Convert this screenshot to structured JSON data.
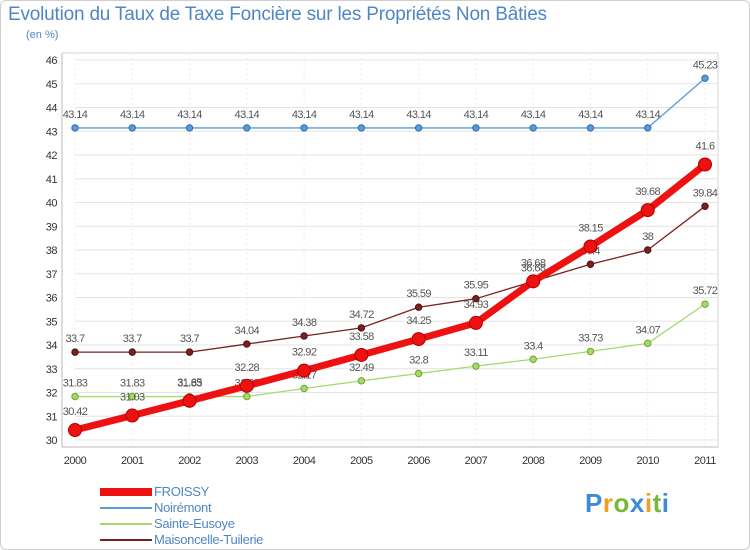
{
  "page": {
    "title": "Evolution du Taux de Taxe Foncière sur les Propriétés Non Bâties",
    "subtitle": "(en %)"
  },
  "watermark": {
    "letters": [
      {
        "ch": "P",
        "color": "#3c8bd6"
      },
      {
        "ch": "r",
        "color": "#f0a020"
      },
      {
        "ch": "o",
        "color": "#79b83a"
      },
      {
        "ch": "x",
        "color": "#3c8bd6"
      },
      {
        "ch": "i",
        "color": "#f0a020"
      },
      {
        "ch": "t",
        "color": "#79b83a"
      },
      {
        "ch": "i",
        "color": "#3c8bd6"
      }
    ]
  },
  "chart_data": {
    "type": "line",
    "title": "Evolution du Taux de Taxe Foncière sur les Propriétés Non Bâties",
    "ylabel": "(en %)",
    "x": [
      "2000",
      "2001",
      "2002",
      "2003",
      "2004",
      "2005",
      "2006",
      "2007",
      "2008",
      "2009",
      "2010",
      "2011"
    ],
    "ylim": [
      30,
      46
    ],
    "yticks": [
      "30",
      "31",
      "32",
      "33",
      "34",
      "35",
      "36",
      "37",
      "38",
      "39",
      "40",
      "41",
      "42",
      "43",
      "44",
      "45",
      "46"
    ],
    "grid": true,
    "legend_position": "bottom-left",
    "series": [
      {
        "name": "Noirémont",
        "color": "#5b9bd5",
        "values": [
          43.14,
          43.14,
          43.14,
          43.14,
          43.14,
          43.14,
          43.14,
          43.14,
          43.14,
          43.14,
          43.14,
          45.23
        ],
        "labels": [
          "43.14",
          "43.14",
          "43.14",
          "43.14",
          "43.14",
          "43.14",
          "43.14",
          "43.14",
          "43.14",
          "43.14",
          "43.14",
          "45.23"
        ]
      },
      {
        "name": "Maisoncelle-Tuilerie",
        "color": "#7b2020",
        "values": [
          33.7,
          33.7,
          33.7,
          34.04,
          34.38,
          34.72,
          35.59,
          35.95,
          36.68,
          37.4,
          38.0,
          39.84
        ],
        "labels": [
          "33.7",
          "33.7",
          "33.7",
          "34.04",
          "34.38",
          "34.72",
          "35.59",
          "35.95",
          "36.68",
          "37.4",
          "38",
          "39.84"
        ]
      },
      {
        "name": "Sainte-Eusoye",
        "color": "#a6d96a",
        "values": [
          31.83,
          31.83,
          31.83,
          31.83,
          32.17,
          32.49,
          32.8,
          33.11,
          33.4,
          33.73,
          34.07,
          35.72
        ],
        "labels": [
          "31.83",
          "31.83",
          "31.83",
          "31.83",
          "32.17",
          "32.49",
          "32.8",
          "33.11",
          "33.4",
          "33.73",
          "34.07",
          "35.72"
        ]
      },
      {
        "name": "FROISSY",
        "color": "#ee1111",
        "values": [
          30.42,
          31.03,
          31.65,
          32.28,
          32.92,
          33.58,
          34.25,
          34.93,
          36.68,
          38.15,
          39.68,
          41.6
        ],
        "labels": [
          "30.42",
          "31.03",
          "31.65",
          "32.28",
          "32.92",
          "33.58",
          "34.25",
          "34.93",
          "36.68",
          "38.15",
          "39.68",
          "41.6"
        ]
      }
    ],
    "legend": [
      "FROISSY",
      "Noirémont",
      "Sainte-Eusoye",
      "Maisoncelle-Tuilerie"
    ]
  }
}
